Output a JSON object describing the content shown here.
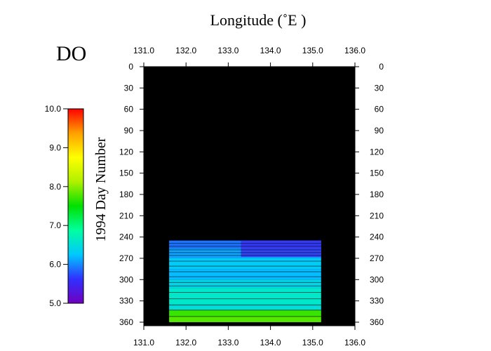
{
  "chart_data": {
    "type": "heatmap",
    "title": "DO",
    "xlabel": "Longitude (˚E )",
    "ylabel": "1994 Day Number",
    "xlim": [
      131.0,
      136.0
    ],
    "ylim": [
      0,
      365
    ],
    "x_ticks": [
      "131.0",
      "132.0",
      "133.0",
      "134.0",
      "135.0",
      "136.0"
    ],
    "y_ticks": [
      "0",
      "30",
      "60",
      "90",
      "120",
      "150",
      "180",
      "210",
      "240",
      "270",
      "300",
      "330",
      "360"
    ],
    "colorbar": {
      "min": 5.0,
      "max": 10.0,
      "ticks": [
        "5.0",
        "6.0",
        "7.0",
        "8.0",
        "9.0",
        "10.0"
      ],
      "colors": [
        "#7000c0",
        "#3030ff",
        "#00c8ff",
        "#00ffa0",
        "#00e000",
        "#b0f000",
        "#ffff00",
        "#ffa000",
        "#ff0000"
      ]
    },
    "background_color": "#000000",
    "data_region": {
      "x_range": [
        131.6,
        135.2
      ],
      "day_range": [
        245,
        360
      ]
    },
    "bands": [
      {
        "day_start": 245,
        "day_end": 256,
        "value": 5.9
      },
      {
        "day_start": 256,
        "day_end": 270,
        "value": 6.1
      },
      {
        "day_start": 270,
        "day_end": 285,
        "value": 6.3
      },
      {
        "day_start": 285,
        "day_end": 300,
        "value": 6.2
      },
      {
        "day_start": 300,
        "day_end": 312,
        "value": 6.4
      },
      {
        "day_start": 312,
        "day_end": 335,
        "value": 6.6
      },
      {
        "day_start": 335,
        "day_end": 343,
        "value": 6.5
      },
      {
        "day_start": 343,
        "day_end": 352,
        "value": 7.7
      },
      {
        "day_start": 352,
        "day_end": 360,
        "value": 7.8
      }
    ],
    "low_patch": {
      "x_range": [
        133.3,
        135.2
      ],
      "day_range": [
        245,
        268
      ],
      "value": 5.5
    }
  }
}
